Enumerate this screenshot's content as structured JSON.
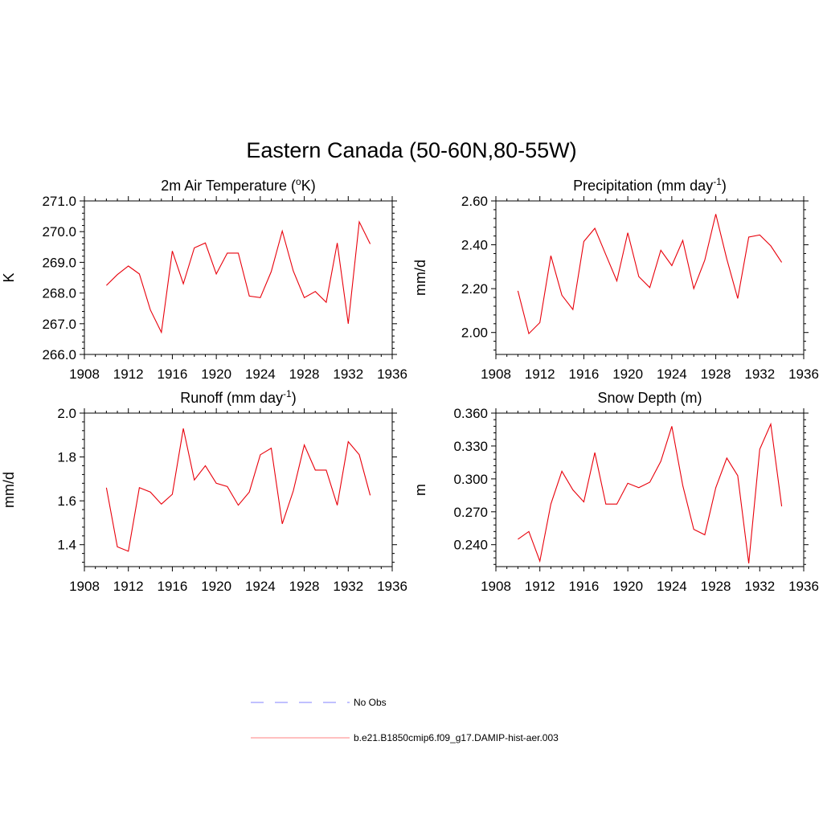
{
  "figure": {
    "title": "Eastern Canada (50-60N,80-55W)"
  },
  "chart_data": [
    {
      "type": "line",
      "title": "2m Air Temperature (°K)",
      "title_parts": [
        "2m Air Temperature (",
        "o",
        "K)"
      ],
      "ylabel": "K",
      "xlim": [
        1908,
        1936
      ],
      "ylim": [
        266.0,
        271.0
      ],
      "xticks": [
        1908,
        1912,
        1916,
        1920,
        1924,
        1928,
        1932,
        1936
      ],
      "yticks": [
        266.0,
        267.0,
        268.0,
        269.0,
        270.0,
        271.0
      ],
      "ytick_labels": [
        "266.0",
        "267.0",
        "268.0",
        "269.0",
        "270.0",
        "271.0"
      ],
      "series": [
        {
          "x": [
            1910,
            1911,
            1912,
            1913,
            1914,
            1915,
            1916,
            1917,
            1918,
            1919,
            1920,
            1921,
            1922,
            1923,
            1924,
            1925,
            1926,
            1927,
            1928,
            1929,
            1930,
            1931,
            1932,
            1933,
            1934
          ],
          "y": [
            268.25,
            268.6,
            268.88,
            268.62,
            267.45,
            266.72,
            269.37,
            268.3,
            269.47,
            269.63,
            268.62,
            269.3,
            269.3,
            267.9,
            267.85,
            268.7,
            270.02,
            268.72,
            267.85,
            268.05,
            267.7,
            269.63,
            267.0,
            270.32,
            269.6
          ],
          "color": "#e8000b"
        }
      ]
    },
    {
      "type": "line",
      "title": "Precipitation (mm day-1)",
      "title_parts": [
        "Precipitation (mm day",
        "-1",
        ")"
      ],
      "ylabel": "mm/d",
      "xlim": [
        1908,
        1936
      ],
      "ylim": [
        1.9,
        2.6
      ],
      "xticks": [
        1908,
        1912,
        1916,
        1920,
        1924,
        1928,
        1932,
        1936
      ],
      "yticks": [
        2.0,
        2.2,
        2.4,
        2.6
      ],
      "ytick_labels": [
        "2.00",
        "2.20",
        "2.40",
        "2.60"
      ],
      "series": [
        {
          "x": [
            1910,
            1911,
            1912,
            1913,
            1914,
            1915,
            1916,
            1917,
            1918,
            1919,
            1920,
            1921,
            1922,
            1923,
            1924,
            1925,
            1926,
            1927,
            1928,
            1929,
            1930,
            1931,
            1932,
            1933,
            1934
          ],
          "y": [
            2.19,
            1.995,
            2.045,
            2.35,
            2.17,
            2.105,
            2.415,
            2.475,
            2.355,
            2.235,
            2.455,
            2.255,
            2.205,
            2.375,
            2.305,
            2.42,
            2.2,
            2.33,
            2.54,
            2.335,
            2.155,
            2.435,
            2.445,
            2.395,
            2.32
          ],
          "color": "#e8000b"
        }
      ]
    },
    {
      "type": "line",
      "title": "Runoff (mm day-1)",
      "title_parts": [
        "Runoff (mm day",
        "-1",
        ")"
      ],
      "ylabel": "mm/d",
      "xlim": [
        1908,
        1936
      ],
      "ylim": [
        1.3,
        2.0
      ],
      "xticks": [
        1908,
        1912,
        1916,
        1920,
        1924,
        1928,
        1932,
        1936
      ],
      "yticks": [
        1.4,
        1.6,
        1.8,
        2.0
      ],
      "ytick_labels": [
        "1.4",
        "1.6",
        "1.8",
        "2.0"
      ],
      "series": [
        {
          "x": [
            1910,
            1911,
            1912,
            1913,
            1914,
            1915,
            1916,
            1917,
            1918,
            1919,
            1920,
            1921,
            1922,
            1923,
            1924,
            1925,
            1926,
            1927,
            1928,
            1929,
            1930,
            1931,
            1932,
            1933,
            1934
          ],
          "y": [
            1.66,
            1.39,
            1.37,
            1.66,
            1.64,
            1.585,
            1.63,
            1.93,
            1.695,
            1.76,
            1.68,
            1.665,
            1.58,
            1.64,
            1.81,
            1.84,
            1.495,
            1.645,
            1.855,
            1.74,
            1.74,
            1.58,
            1.87,
            1.81,
            1.625
          ],
          "color": "#e8000b"
        }
      ]
    },
    {
      "type": "line",
      "title": "Snow Depth (m)",
      "title_parts": [
        "Snow Depth (m)",
        "",
        ""
      ],
      "ylabel": "m",
      "xlim": [
        1908,
        1936
      ],
      "ylim": [
        0.22,
        0.36
      ],
      "xticks": [
        1908,
        1912,
        1916,
        1920,
        1924,
        1928,
        1932,
        1936
      ],
      "yticks": [
        0.24,
        0.27,
        0.3,
        0.33,
        0.36
      ],
      "ytick_labels": [
        "0.240",
        "0.270",
        "0.300",
        "0.330",
        "0.360"
      ],
      "series": [
        {
          "x": [
            1910,
            1911,
            1912,
            1913,
            1914,
            1915,
            1916,
            1917,
            1918,
            1919,
            1920,
            1921,
            1922,
            1923,
            1924,
            1925,
            1926,
            1927,
            1928,
            1929,
            1930,
            1931,
            1932,
            1933,
            1934
          ],
          "y": [
            0.245,
            0.252,
            0.225,
            0.277,
            0.307,
            0.29,
            0.279,
            0.324,
            0.277,
            0.277,
            0.296,
            0.292,
            0.297,
            0.316,
            0.348,
            0.294,
            0.254,
            0.249,
            0.292,
            0.319,
            0.303,
            0.223,
            0.327,
            0.35,
            0.275
          ],
          "color": "#e8000b"
        }
      ]
    }
  ],
  "legend": {
    "items": [
      {
        "label": "No Obs",
        "color": "#8080ff",
        "style": "dashed"
      },
      {
        "label": "b.e21.B1850cmip6.f09_g17.DAMIP-hist-aer.003",
        "color": "#ff8080",
        "style": "solid"
      }
    ]
  }
}
